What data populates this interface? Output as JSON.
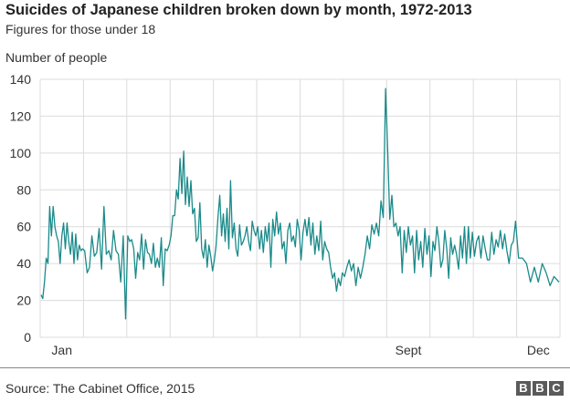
{
  "chart_data": {
    "type": "line",
    "title": "Suicides of Japanese children broken down by month, 1972-2013",
    "subtitle": "Figures for those under 18",
    "ylabel": "Number of people",
    "xlabel": "",
    "ylim": [
      0,
      140
    ],
    "yticks": [
      0,
      20,
      40,
      60,
      80,
      100,
      120,
      140
    ],
    "xtick_labels": [
      {
        "label": "Jan",
        "month": 1
      },
      {
        "label": "Sept",
        "month": 9
      },
      {
        "label": "Dec",
        "month": 12
      }
    ],
    "grid": true,
    "line_color": "#1a8a8a",
    "values_by_month": [
      [
        23,
        21,
        30,
        43,
        40,
        71,
        55,
        71,
        60,
        55,
        52,
        40,
        55,
        62,
        48,
        62,
        52,
        45,
        57,
        40,
        56,
        42,
        50,
        47,
        48
      ],
      [
        47,
        35,
        38,
        55,
        44,
        46,
        59,
        37,
        71,
        45,
        47,
        42,
        58,
        47,
        45,
        30,
        55,
        10
      ],
      [
        55,
        52,
        53,
        48,
        32,
        46,
        42,
        56,
        37,
        53,
        46,
        45,
        40,
        51,
        38,
        43,
        38,
        54,
        28,
        48,
        47,
        50
      ],
      [
        55,
        66,
        66,
        80,
        75,
        97,
        78,
        101,
        72,
        87,
        71,
        85,
        67,
        70,
        52,
        54,
        73,
        48,
        43,
        53,
        38,
        50,
        44,
        36
      ],
      [
        42,
        50,
        65,
        77,
        55,
        67,
        52,
        70,
        48,
        85,
        54,
        62,
        48,
        44,
        61,
        50,
        52,
        55,
        60,
        52,
        47,
        63,
        58,
        55
      ],
      [
        60,
        48,
        58,
        46,
        60,
        52,
        62,
        38,
        64,
        55,
        68,
        56,
        62,
        48,
        52,
        40,
        58,
        62,
        52,
        55,
        49,
        64,
        58
      ],
      [
        42,
        57,
        64,
        55,
        65,
        50,
        62,
        45,
        55,
        47,
        63,
        42,
        52,
        48,
        46,
        38,
        32,
        35,
        25,
        32,
        28,
        35
      ],
      [
        33,
        38,
        42,
        36,
        40,
        28,
        38,
        32,
        38,
        45,
        55,
        48,
        61,
        56,
        62,
        55,
        74,
        65,
        135
      ],
      [
        100,
        64,
        77,
        60,
        62,
        55,
        60,
        35,
        58,
        46,
        60,
        50,
        55,
        35,
        58,
        42,
        52,
        38,
        59,
        45,
        55
      ],
      [
        33,
        52,
        47,
        60,
        52,
        38,
        42,
        58,
        48,
        32,
        54,
        45,
        50,
        45,
        37,
        55,
        43,
        60,
        40,
        60,
        43,
        57
      ],
      [
        44,
        52,
        55,
        43,
        55,
        48,
        42,
        42,
        57,
        45,
        53,
        49,
        58,
        48,
        56,
        47,
        40,
        50,
        52,
        63
      ],
      [
        43,
        43,
        40,
        30,
        38,
        30,
        40,
        35,
        28,
        33,
        30
      ]
    ]
  },
  "footer": {
    "source": "Source: The Cabinet Office, 2015",
    "logo": [
      "B",
      "B",
      "C"
    ]
  }
}
